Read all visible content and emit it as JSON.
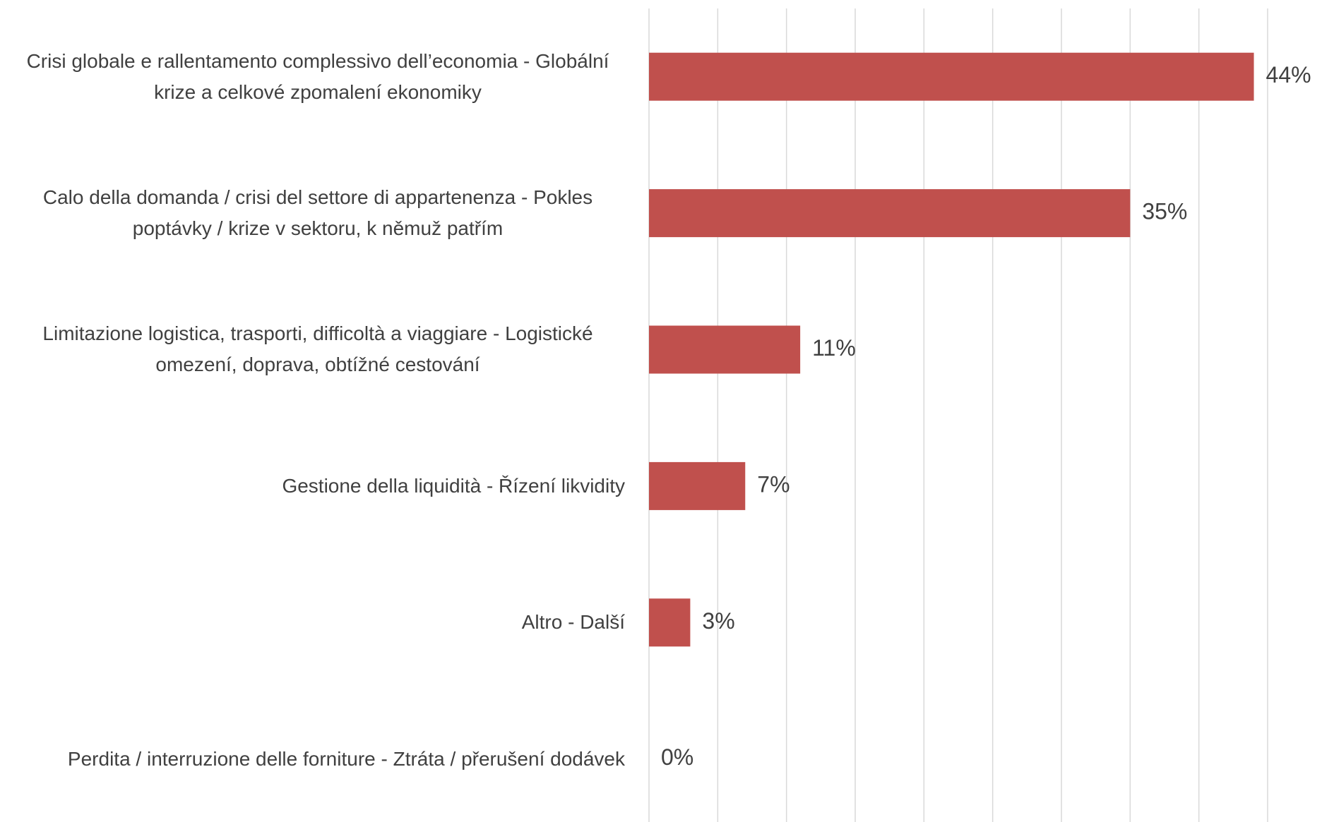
{
  "chart_data": {
    "type": "bar",
    "orientation": "horizontal",
    "categories": [
      "Crisi globale e rallentamento complessivo dell’economia - Globální krize a celkové zpomalení ekonomiky",
      "Calo della domanda / crisi del settore di appartenenza - Pokles poptávky / krize v sektoru, k němuž patřím",
      "Limitazione logistica, trasporti, difficoltà a viaggiare - Logistické omezení, doprava, obtížné cestování",
      "Gestione della liquidità - Řízení likvidity",
      "Altro - Další",
      "Perdita / interruzione delle forniture - Ztráta / přerušení dodávek"
    ],
    "values": [
      44,
      35,
      11,
      7,
      3,
      0
    ],
    "value_labels": [
      "44%",
      "35%",
      "11%",
      "7%",
      "3%",
      "0%"
    ],
    "color": "#c0504d",
    "xlim": [
      0,
      45
    ],
    "xticks": [
      0,
      5,
      10,
      15,
      20,
      25,
      30,
      35,
      40,
      45
    ],
    "grid": true
  }
}
